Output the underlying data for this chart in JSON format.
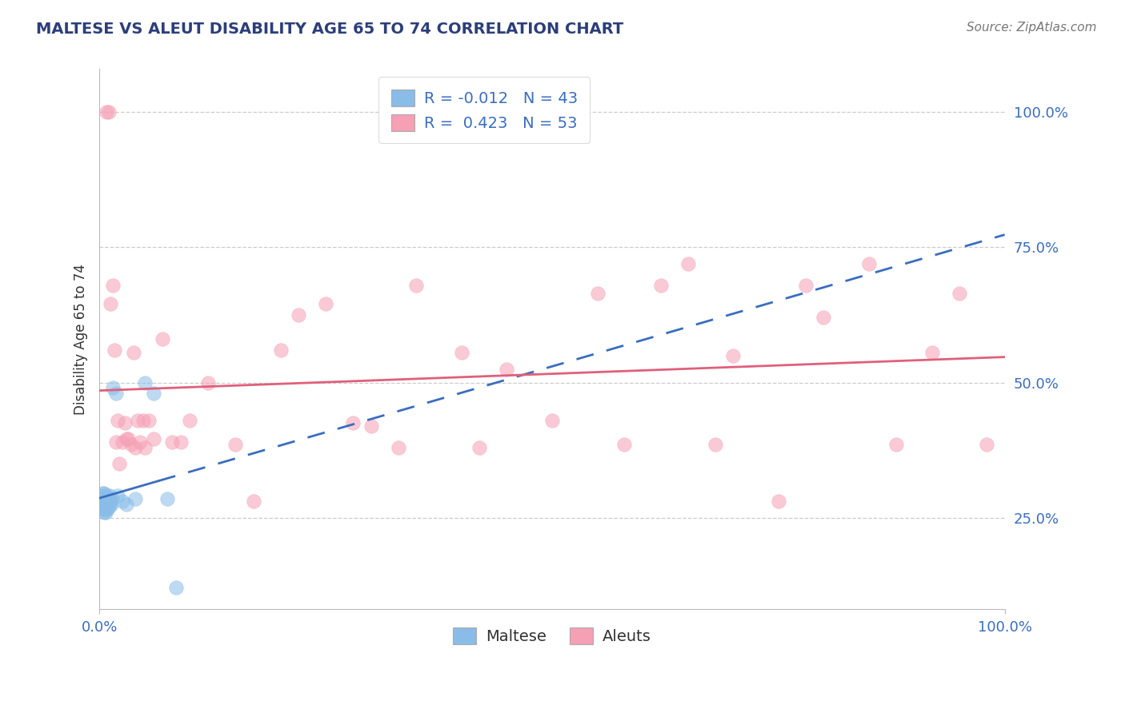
{
  "title": "MALTESE VS ALEUT DISABILITY AGE 65 TO 74 CORRELATION CHART",
  "source_text": "Source: ZipAtlas.com",
  "ylabel": "Disability Age 65 to 74",
  "xlim": [
    0.0,
    1.0
  ],
  "ylim": [
    0.08,
    1.08
  ],
  "x_tick_labels": [
    "0.0%",
    "100.0%"
  ],
  "y_tick_labels": [
    "25.0%",
    "50.0%",
    "75.0%",
    "100.0%"
  ],
  "y_tick_positions": [
    0.25,
    0.5,
    0.75,
    1.0
  ],
  "maltese_color": "#89bde8",
  "aleuts_color": "#f5a0b5",
  "maltese_R": -0.012,
  "maltese_N": 43,
  "aleuts_R": 0.423,
  "aleuts_N": 53,
  "maltese_x": [
    0.002,
    0.003,
    0.003,
    0.003,
    0.004,
    0.004,
    0.004,
    0.004,
    0.005,
    0.005,
    0.005,
    0.005,
    0.005,
    0.006,
    0.006,
    0.006,
    0.006,
    0.007,
    0.007,
    0.007,
    0.007,
    0.008,
    0.008,
    0.008,
    0.009,
    0.009,
    0.01,
    0.01,
    0.011,
    0.011,
    0.012,
    0.013,
    0.014,
    0.015,
    0.018,
    0.02,
    0.025,
    0.03,
    0.04,
    0.05,
    0.06,
    0.075,
    0.085
  ],
  "maltese_y": [
    0.285,
    0.275,
    0.28,
    0.295,
    0.265,
    0.27,
    0.28,
    0.29,
    0.26,
    0.265,
    0.275,
    0.28,
    0.295,
    0.265,
    0.27,
    0.275,
    0.285,
    0.26,
    0.265,
    0.27,
    0.28,
    0.27,
    0.28,
    0.29,
    0.265,
    0.28,
    0.27,
    0.285,
    0.275,
    0.29,
    0.28,
    0.275,
    0.285,
    0.49,
    0.48,
    0.29,
    0.28,
    0.275,
    0.285,
    0.5,
    0.48,
    0.285,
    0.12
  ],
  "aleuts_x": [
    0.008,
    0.01,
    0.012,
    0.015,
    0.017,
    0.018,
    0.02,
    0.022,
    0.025,
    0.028,
    0.03,
    0.032,
    0.035,
    0.038,
    0.04,
    0.042,
    0.045,
    0.048,
    0.05,
    0.055,
    0.06,
    0.07,
    0.08,
    0.09,
    0.1,
    0.12,
    0.15,
    0.17,
    0.2,
    0.22,
    0.25,
    0.28,
    0.3,
    0.33,
    0.35,
    0.4,
    0.42,
    0.45,
    0.5,
    0.55,
    0.58,
    0.62,
    0.65,
    0.68,
    0.7,
    0.75,
    0.78,
    0.8,
    0.85,
    0.88,
    0.92,
    0.95,
    0.98
  ],
  "aleuts_y": [
    1.0,
    1.0,
    0.645,
    0.68,
    0.56,
    0.39,
    0.43,
    0.35,
    0.39,
    0.425,
    0.395,
    0.395,
    0.385,
    0.555,
    0.38,
    0.43,
    0.39,
    0.43,
    0.38,
    0.43,
    0.395,
    0.58,
    0.39,
    0.39,
    0.43,
    0.5,
    0.385,
    0.28,
    0.56,
    0.625,
    0.645,
    0.425,
    0.42,
    0.38,
    0.68,
    0.555,
    0.38,
    0.525,
    0.43,
    0.665,
    0.385,
    0.68,
    0.72,
    0.385,
    0.55,
    0.28,
    0.68,
    0.62,
    0.72,
    0.385,
    0.555,
    0.665,
    0.385
  ],
  "background_color": "#ffffff",
  "grid_color": "#cccccc",
  "title_color": "#2c3e7a",
  "source_color": "#777777",
  "legend_text_color": "#3a6dbf",
  "axis_tick_color": "#3a6dbf",
  "ylabel_color": "#333333"
}
